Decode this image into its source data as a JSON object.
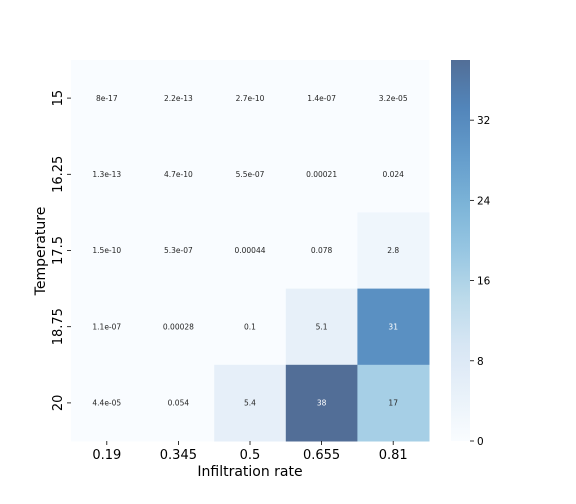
{
  "chart_data": {
    "type": "heatmap",
    "xlabel": "Infiltration rate",
    "ylabel": "Temperature",
    "x_categories": [
      "0.19",
      "0.345",
      "0.5",
      "0.655",
      "0.81"
    ],
    "y_categories": [
      "15",
      "16.25",
      "17.5",
      "18.75",
      "20"
    ],
    "values": [
      [
        8e-17,
        2.2e-13,
        2.7e-10,
        1.4e-07,
        3.2e-05
      ],
      [
        1.3e-13,
        4.7e-10,
        5.5e-07,
        0.00021,
        0.024
      ],
      [
        1.5e-10,
        5.3e-07,
        0.00044,
        0.078,
        2.8
      ],
      [
        1.1e-07,
        0.00028,
        0.1,
        5.1,
        31
      ],
      [
        4.4e-05,
        0.054,
        5.4,
        38,
        17
      ]
    ],
    "annotations": [
      [
        "8e-17",
        "2.2e-13",
        "2.7e-10",
        "1.4e-07",
        "3.2e-05"
      ],
      [
        "1.3e-13",
        "4.7e-10",
        "5.5e-07",
        "0.00021",
        "0.024"
      ],
      [
        "1.5e-10",
        "5.3e-07",
        "0.00044",
        "0.078",
        "2.8"
      ],
      [
        "1.1e-07",
        "0.00028",
        "0.1",
        "5.1",
        "31"
      ],
      [
        "4.4e-05",
        "0.054",
        "5.4",
        "38",
        "17"
      ]
    ],
    "colorbar": {
      "min": 0,
      "max": 38,
      "ticks": [
        0,
        8,
        16,
        24,
        32
      ],
      "colormap": "Blues",
      "alpha": 0.7
    },
    "grid": false
  }
}
